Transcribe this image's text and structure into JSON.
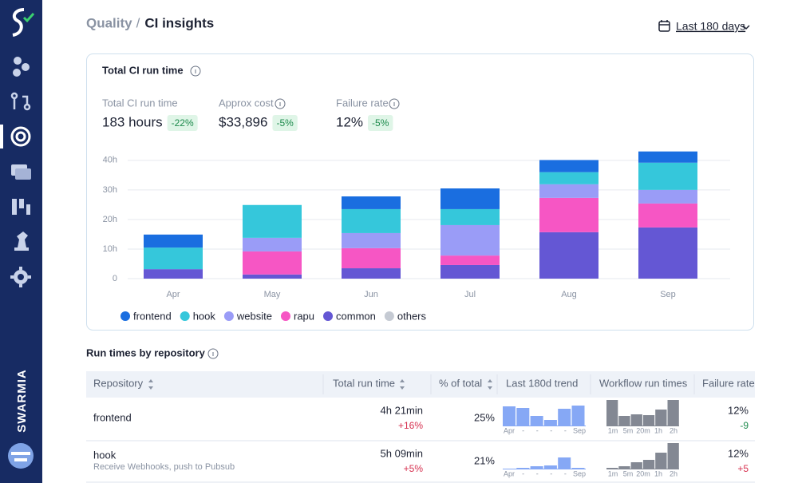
{
  "sidebar": {
    "brand": "SWARMIA"
  },
  "header": {
    "section": "Quality",
    "separator": "/",
    "title": "CI insights",
    "date_range": "Last 180 days"
  },
  "card": {
    "title": "Total CI run time",
    "metrics": [
      {
        "label": "Total CI run time",
        "value": "183 hours",
        "change": "-22%"
      },
      {
        "label": "Approx cost",
        "value": "$33,896",
        "change": "-5%"
      },
      {
        "label": "Failure rate",
        "value": "12%",
        "change": "-5%"
      }
    ],
    "chart_data": {
      "type": "bar",
      "stacked": true,
      "categories": [
        "Apr",
        "May",
        "Jun",
        "Jul",
        "Aug",
        "Sep"
      ],
      "series": [
        {
          "name": "common",
          "color": "#6457d4",
          "values": [
            3.2,
            1.4,
            3.5,
            4.6,
            15.7,
            17.3
          ]
        },
        {
          "name": "rapu",
          "color": "#f656c4",
          "values": [
            0,
            7.8,
            6.8,
            3.2,
            11.6,
            8.1
          ]
        },
        {
          "name": "website",
          "color": "#9a9cf7",
          "values": [
            0,
            4.6,
            5.1,
            10.3,
            4.6,
            4.6
          ]
        },
        {
          "name": "hook",
          "color": "#35c7db",
          "values": [
            7.3,
            11.1,
            8.1,
            5.4,
            4.1,
            9.2
          ]
        },
        {
          "name": "frontend",
          "color": "#1a6ee0",
          "values": [
            4.4,
            0,
            4.3,
            7.0,
            4.1,
            3.8
          ]
        },
        {
          "name": "others",
          "color": "#c5cad3",
          "values": [
            0,
            0,
            0,
            0,
            0,
            0
          ]
        }
      ],
      "legend_order": [
        "frontend",
        "hook",
        "website",
        "rapu",
        "common",
        "others"
      ],
      "ylim": [
        0,
        44
      ],
      "yticks": [
        {
          "value": 0,
          "label": "0"
        },
        {
          "value": 10,
          "label": "10h"
        },
        {
          "value": 20,
          "label": "20h"
        },
        {
          "value": 30,
          "label": "30h"
        },
        {
          "value": 40,
          "label": "40h"
        }
      ],
      "grid": true
    }
  },
  "table": {
    "title": "Run times by repository",
    "columns": [
      "Repository",
      "Total run time",
      "% of total",
      "Last 180d trend",
      "Workflow run times",
      "Failure rate"
    ],
    "trend_labels": [
      "Apr",
      "-",
      "-",
      "-",
      "-",
      "Sep"
    ],
    "workflow_labels": [
      "1m",
      "5m",
      "20m",
      "1h",
      "2h"
    ],
    "rows": [
      {
        "repository": "frontend",
        "total_run_time": "4h 21min",
        "change": "+16%",
        "percent": "25%",
        "trend": [
          24,
          22,
          12,
          7,
          21,
          25
        ],
        "workflow": [
          32,
          12,
          14,
          13,
          20,
          32
        ],
        "failure_rate": "12%",
        "failure_change": "-9"
      },
      {
        "repository": "hook",
        "description": "Receive Webhooks, push to Pubsub",
        "total_run_time": "5h 09min",
        "change": "+5%",
        "percent": "21%",
        "trend": [
          0,
          1,
          3,
          4,
          14,
          1
        ],
        "workflow": [
          1,
          3,
          8,
          11,
          20,
          32
        ],
        "failure_rate": "12%",
        "failure_change": "+5"
      }
    ]
  }
}
